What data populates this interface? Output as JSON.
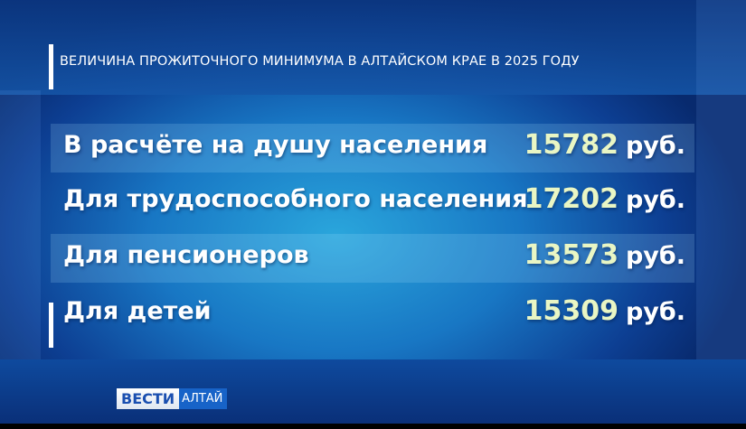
{
  "title": "ВЕЛИЧИНА ПРОЖИТОЧНОГО МИНИМУМА В АЛТАЙСКОМ КРАЕ В 2025 ГОДУ",
  "rows": [
    {
      "label": "В расчёте на душу населения",
      "value": "15782",
      "unit": "руб."
    },
    {
      "label": "Для трудоспособного населения",
      "value": "17202",
      "unit": "руб."
    },
    {
      "label": "Для пенсионеров",
      "value": "13573",
      "unit": "руб."
    },
    {
      "label": "Для детей",
      "value": "15309",
      "unit": "руб."
    }
  ],
  "logo": {
    "brand": "ВЕСТИ",
    "region": "АЛТАЙ"
  },
  "colors": {
    "value": "#e9f6c4",
    "background": "#1877c4"
  }
}
